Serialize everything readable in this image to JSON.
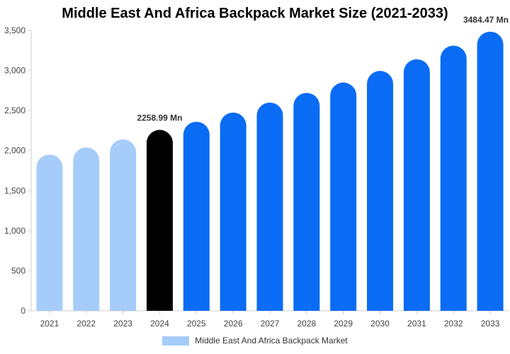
{
  "chart_data": {
    "type": "bar",
    "title": "Middle East And Africa Backpack Market Size (2021-2033)",
    "categories": [
      "2021",
      "2022",
      "2023",
      "2024",
      "2025",
      "2026",
      "2027",
      "2028",
      "2029",
      "2030",
      "2031",
      "2032",
      "2033"
    ],
    "series": [
      {
        "name": "Middle East And Africa Backpack Market",
        "values": [
          1950,
          2040,
          2140,
          2258.99,
          2360,
          2475,
          2600,
          2720,
          2850,
          2995,
          3140,
          3310,
          3484.47
        ]
      }
    ],
    "yticks": [
      "0",
      "500",
      "1,000",
      "1,500",
      "2,000",
      "2,500",
      "3,000",
      "3,500"
    ],
    "ylim": [
      0,
      3500
    ],
    "grid": false,
    "legend_position": "bottom",
    "data_labels": [
      {
        "index": 3,
        "text": "2258.99 Mn"
      },
      {
        "index": 12,
        "text": "3484.47 Mn"
      }
    ],
    "colors": {
      "historical": "#a6ccfa",
      "base_year": "#000000",
      "forecast": "#0a6cf5"
    },
    "base_year_index": 3
  }
}
